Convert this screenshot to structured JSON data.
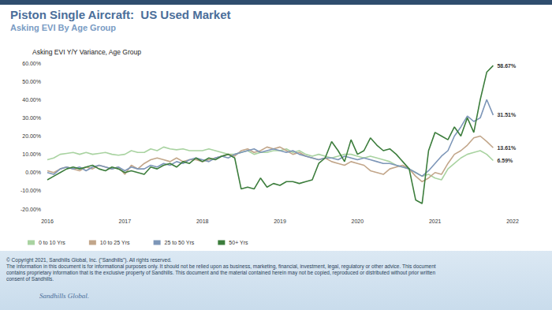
{
  "chart_data": {
    "type": "line",
    "title": "Piston Single Aircraft:  US Used Market",
    "subtitle": "Asking EVI By Age Group",
    "y_label": "Asking EVI Y/Y Variance, Age Group",
    "categories": [
      "2016",
      null,
      null,
      null,
      null,
      null,
      null,
      null,
      null,
      null,
      null,
      null,
      "2017",
      null,
      null,
      null,
      null,
      null,
      null,
      null,
      null,
      null,
      null,
      null,
      "2018",
      null,
      null,
      null,
      null,
      null,
      null,
      null,
      null,
      null,
      null,
      null,
      "2019",
      null,
      null,
      null,
      null,
      null,
      null,
      null,
      null,
      null,
      null,
      null,
      "2020",
      null,
      null,
      null,
      null,
      null,
      null,
      null,
      null,
      null,
      null,
      null,
      "2021",
      null,
      null,
      null,
      null,
      null,
      null,
      null,
      null,
      null,
      null,
      null,
      "2022"
    ],
    "series": [
      {
        "name": "0 to 10 Yrs",
        "color": "#a9d3a1",
        "values": [
          7,
          8,
          10,
          10.5,
          11,
          10,
          11,
          10,
          10.5,
          11,
          10,
          9.5,
          10,
          12,
          11,
          11,
          13,
          12,
          14,
          13,
          12.5,
          13,
          12,
          12,
          12,
          13,
          12,
          11,
          10,
          10,
          11,
          12,
          10,
          11,
          11,
          12,
          12,
          13,
          11,
          12,
          10,
          9,
          10,
          9,
          8,
          9,
          10,
          10,
          9,
          8,
          9,
          8,
          7,
          6,
          4,
          3,
          2,
          0,
          -2,
          -1,
          -3,
          -4,
          2,
          5,
          8,
          10,
          11,
          12,
          10,
          6.59,
          null,
          null,
          null
        ],
        "value_labels": [
          null,
          null,
          null,
          null,
          null,
          null,
          null,
          null,
          null,
          null,
          null,
          null,
          null,
          null,
          null,
          null,
          null,
          null,
          null,
          null,
          null,
          null,
          null,
          null,
          null,
          null,
          null,
          null,
          null,
          null,
          null,
          null,
          null,
          null,
          null,
          null,
          null,
          null,
          null,
          null,
          null,
          null,
          null,
          null,
          null,
          null,
          null,
          null,
          null,
          null,
          null,
          null,
          null,
          null,
          null,
          null,
          null,
          null,
          null,
          null,
          null,
          null,
          null,
          null,
          null,
          null,
          null,
          null,
          null,
          "6.59%",
          null,
          null,
          null
        ]
      },
      {
        "name": "10 to 25 Yrs",
        "color": "#c2a68a",
        "values": [
          1,
          0,
          2,
          3,
          2,
          1,
          3,
          2,
          4,
          3,
          2,
          3,
          -1,
          4,
          2,
          5,
          7,
          8,
          7,
          6,
          8,
          6,
          7,
          7,
          6,
          7,
          8,
          9,
          10,
          9,
          12,
          13,
          11,
          12,
          14,
          13,
          14,
          12,
          10,
          11,
          9,
          8,
          7,
          8,
          6,
          5,
          4,
          6,
          5,
          4,
          1,
          0,
          -1,
          2,
          3,
          4,
          2,
          -2,
          -5,
          -3,
          0,
          -1,
          5,
          10,
          12,
          15,
          19,
          20,
          17,
          13.61,
          null,
          null,
          null
        ],
        "value_labels": [
          null,
          null,
          null,
          null,
          null,
          null,
          null,
          null,
          null,
          null,
          null,
          null,
          null,
          null,
          null,
          null,
          null,
          null,
          null,
          null,
          null,
          null,
          null,
          null,
          null,
          null,
          null,
          null,
          null,
          null,
          null,
          null,
          null,
          null,
          null,
          null,
          null,
          null,
          null,
          null,
          null,
          null,
          null,
          null,
          null,
          null,
          null,
          null,
          null,
          null,
          null,
          null,
          null,
          null,
          null,
          null,
          null,
          null,
          null,
          null,
          null,
          null,
          null,
          null,
          null,
          null,
          null,
          null,
          null,
          "13.61%",
          null,
          null,
          null
        ]
      },
      {
        "name": "25 to 50 Yrs",
        "color": "#7d96b8",
        "values": [
          0,
          -1,
          2,
          3,
          2,
          3,
          1,
          3,
          4,
          3,
          2,
          3,
          1,
          3,
          2,
          2,
          4,
          3,
          5,
          4,
          6,
          5,
          7,
          8,
          7,
          6,
          8,
          9,
          8,
          10,
          11,
          12,
          13,
          11,
          12,
          13,
          12,
          11,
          12,
          10,
          9,
          8,
          7,
          8,
          8,
          7,
          9,
          8,
          7,
          8,
          7,
          6,
          5,
          5,
          4,
          3,
          2,
          0,
          -2,
          1,
          5,
          9,
          12,
          20,
          25,
          31,
          28,
          30,
          40,
          31.51,
          null,
          null,
          null
        ],
        "value_labels": [
          null,
          null,
          null,
          null,
          null,
          null,
          null,
          null,
          null,
          null,
          null,
          null,
          null,
          null,
          null,
          null,
          null,
          null,
          null,
          null,
          null,
          null,
          null,
          null,
          null,
          null,
          null,
          null,
          null,
          null,
          null,
          null,
          null,
          null,
          null,
          null,
          null,
          null,
          null,
          null,
          null,
          null,
          null,
          null,
          null,
          null,
          null,
          null,
          null,
          null,
          null,
          null,
          null,
          null,
          null,
          null,
          null,
          null,
          null,
          null,
          null,
          null,
          null,
          null,
          null,
          null,
          null,
          null,
          null,
          "31.51%",
          null,
          null,
          null
        ]
      },
      {
        "name": "50+ Yrs",
        "color": "#3c7d3c",
        "values": [
          -4,
          -2,
          0,
          2,
          3,
          2,
          3,
          4,
          2,
          1,
          3,
          2,
          0,
          1,
          0,
          -1,
          3,
          2,
          4,
          5,
          3,
          6,
          5,
          8,
          6,
          8,
          7,
          9,
          10,
          8,
          -9,
          -8,
          -9,
          -3,
          -8,
          -6,
          -7,
          -5,
          -5,
          -6,
          -5,
          -4,
          5,
          8,
          17,
          12,
          6,
          18,
          10,
          12,
          19,
          15,
          12,
          13,
          10,
          6,
          2,
          -15,
          -17,
          12,
          22,
          20,
          18,
          25,
          20,
          30,
          22,
          40,
          55,
          58.67,
          null,
          null,
          null
        ],
        "value_labels": [
          null,
          null,
          null,
          null,
          null,
          null,
          null,
          null,
          null,
          null,
          null,
          null,
          null,
          null,
          null,
          null,
          null,
          null,
          null,
          null,
          null,
          null,
          null,
          null,
          null,
          null,
          null,
          null,
          null,
          null,
          null,
          null,
          null,
          null,
          null,
          null,
          null,
          null,
          null,
          null,
          null,
          null,
          null,
          null,
          null,
          null,
          null,
          null,
          null,
          null,
          null,
          null,
          null,
          null,
          null,
          null,
          null,
          null,
          null,
          null,
          null,
          null,
          null,
          null,
          null,
          null,
          null,
          null,
          null,
          "58.67%",
          null,
          null,
          null
        ]
      }
    ],
    "ylim": [
      -20,
      60
    ],
    "yticks": [
      {
        "value": -20,
        "label": "-20.00%"
      },
      {
        "value": -10,
        "label": "-10.00%"
      },
      {
        "value": 0,
        "label": "0.00%"
      },
      {
        "value": 10,
        "label": "10.00%"
      },
      {
        "value": 20,
        "label": "20.00%"
      },
      {
        "value": 30,
        "label": "30.00%"
      },
      {
        "value": 40,
        "label": "40.00%"
      },
      {
        "value": 50,
        "label": "50.00%"
      },
      {
        "value": 60,
        "label": "60.00%"
      }
    ],
    "grid": false,
    "legend": "bottom-left",
    "data_labels": true
  },
  "footer": {
    "copyright": "© Copyright 2021, Sandhills Global, Inc. (\"Sandhills\"). All rights reserved.",
    "disclaimer": "The information in this document is for informational purposes only.  It should not be relied upon as business, marketing, financial, investment, legal, regulatory or other advice. This document contains proprietary information that is the exclusive property of Sandhills. This document and the material contained herein may not be copied, reproduced or distributed without prior written consent of Sandhills.",
    "logo": "Sandhills Global."
  }
}
